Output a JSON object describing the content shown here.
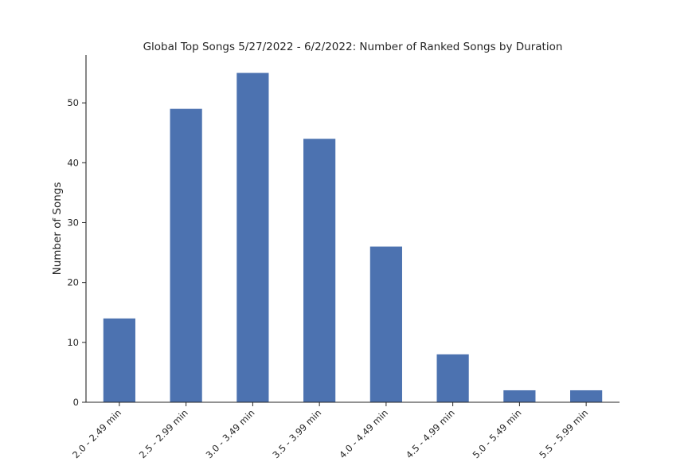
{
  "chart_data": {
    "type": "bar",
    "title": "Global Top Songs 5/27/2022 - 6/2/2022: Number of Ranked Songs by Duration",
    "xlabel": "",
    "ylabel": "Number of Songs",
    "categories": [
      "2.0 - 2.49 min",
      "2.5 - 2.99 min",
      "3.0 - 3.49 min",
      "3.5 - 3.99 min",
      "4.0 - 4.49 min",
      "4.5 - 4.99 min",
      "5.0 - 5.49 min",
      "5.5 - 5.99 min"
    ],
    "values": [
      14,
      49,
      55,
      44,
      26,
      8,
      2,
      2
    ],
    "ylim": [
      0,
      58
    ],
    "yticks": [
      "0",
      "10",
      "20",
      "30",
      "40",
      "50"
    ],
    "grid": false,
    "legend": "none",
    "colors": {
      "bar": "#4c72b0",
      "axis": "#262626",
      "text": "#262626"
    }
  }
}
